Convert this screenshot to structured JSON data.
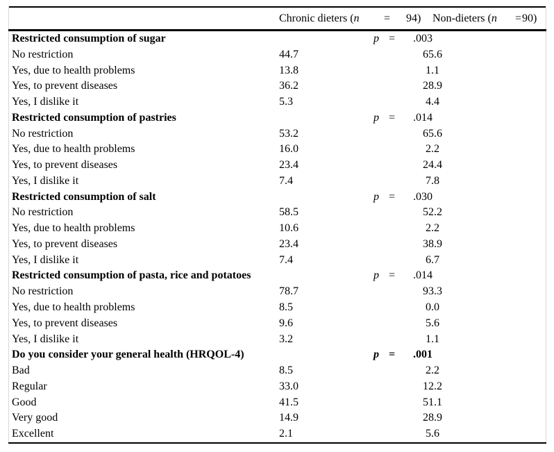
{
  "page": {
    "background_color": "#ffffff",
    "text_color": "#000000",
    "rule_color": "#000000"
  },
  "table": {
    "header": {
      "chronic_label_prefix": "Chronic dieters (",
      "chronic_n_symbol": "n",
      "chronic_eq": "=",
      "chronic_n_value": "94)",
      "non_label_prefix": "Non-dieters (",
      "non_n_symbol": "n",
      "non_eq": "=",
      "non_n_value": "90)"
    },
    "sections": [
      {
        "title": "Restricted consumption of sugar",
        "p_symbol": "p",
        "equals": "=",
        "p_value": ".003",
        "rows": [
          {
            "label": "No restriction",
            "chronic": "44.7",
            "non": "65.6"
          },
          {
            "label": "Yes, due to health problems",
            "chronic": "13.8",
            "non": "1.1"
          },
          {
            "label": "Yes, to prevent diseases",
            "chronic": "36.2",
            "non": "28.9"
          },
          {
            "label": "Yes, I dislike it",
            "chronic": "5.3",
            "non": "4.4"
          }
        ]
      },
      {
        "title": "Restricted consumption of pastries",
        "p_symbol": "p",
        "equals": "=",
        "p_value": ".014",
        "rows": [
          {
            "label": "No restriction",
            "chronic": "53.2",
            "non": "65.6"
          },
          {
            "label": "Yes, due to health problems",
            "chronic": "16.0",
            "non": "2.2"
          },
          {
            "label": "Yes, to prevent diseases",
            "chronic": "23.4",
            "non": "24.4"
          },
          {
            "label": "Yes, I dislike it",
            "chronic": "7.4",
            "non": "7.8"
          }
        ]
      },
      {
        "title": "Restricted consumption of salt",
        "p_symbol": "p",
        "equals": "=",
        "p_value": ".030",
        "rows": [
          {
            "label": "No restriction",
            "chronic": "58.5",
            "non": "52.2"
          },
          {
            "label": "Yes, due to health problems",
            "chronic": "10.6",
            "non": "2.2"
          },
          {
            "label": "Yes, to prevent diseases",
            "chronic": "23.4",
            "non": "38.9"
          },
          {
            "label": "Yes, I dislike it",
            "chronic": "7.4",
            "non": "6.7"
          }
        ]
      },
      {
        "title": "Restricted consumption of pasta, rice and potatoes",
        "p_symbol": "p",
        "equals": "=",
        "p_value": ".014",
        "rows": [
          {
            "label": "No restriction",
            "chronic": "78.7",
            "non": "93.3"
          },
          {
            "label": "Yes, due to health problems",
            "chronic": "8.5",
            "non": "0.0"
          },
          {
            "label": "Yes, to prevent diseases",
            "chronic": "9.6",
            "non": "5.6"
          },
          {
            "label": "Yes, I dislike it",
            "chronic": "3.2",
            "non": "1.1"
          }
        ]
      },
      {
        "title": "Do you consider your general health (HRQOL-4)",
        "p_symbol": "p",
        "equals": "=",
        "p_value": ".001",
        "rows": [
          {
            "label": "Bad",
            "chronic": "8.5",
            "non": "2.2"
          },
          {
            "label": "Regular",
            "chronic": "33.0",
            "non": "12.2"
          },
          {
            "label": "Good",
            "chronic": "41.5",
            "non": "51.1"
          },
          {
            "label": "Very good",
            "chronic": "14.9",
            "non": "28.9"
          },
          {
            "label": "Excellent",
            "chronic": "2.1",
            "non": "5.6"
          }
        ]
      }
    ]
  }
}
